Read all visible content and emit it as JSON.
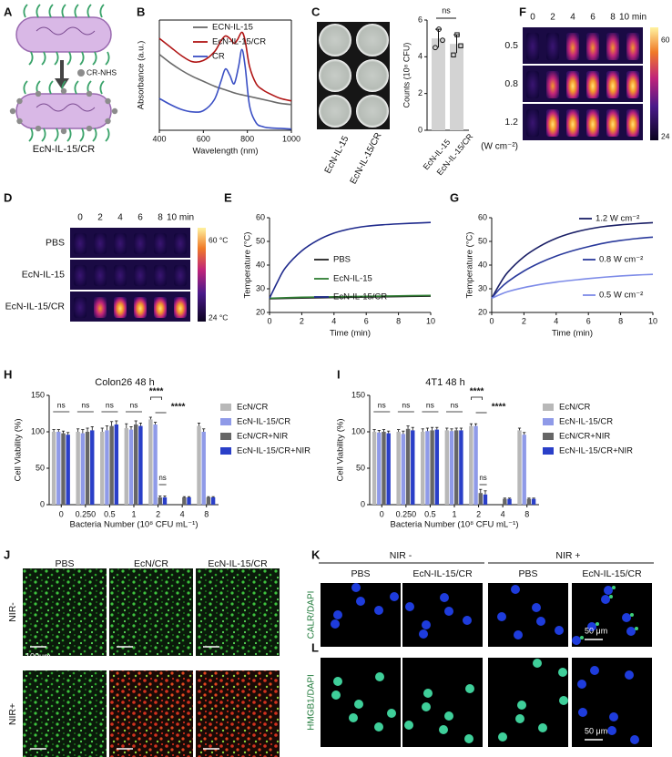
{
  "colors": {
    "ecn_il15": "#6a6a6a",
    "ecn_il15_cr": "#b01515",
    "cr": "#3a4fc4",
    "pbs_line": "#222222",
    "green_line": "#2e7d32",
    "navy": "#1f2a8c",
    "bar_gray": "#b8b8b8",
    "bar_lavender": "#8f9ae8",
    "bar_dark": "#666666",
    "bar_blue": "#2a3fc8"
  },
  "panels": {
    "A": {
      "letter": "A",
      "reagent": "CR-NHS",
      "product": "EcN-IL-15/CR"
    },
    "B": {
      "letter": "B"
    },
    "C": {
      "letter": "C",
      "plate_labels": [
        "EcN-IL-15",
        "EcN-IL-15/CR"
      ],
      "sig": "ns"
    },
    "D": {
      "letter": "D",
      "times": [
        "0",
        "2",
        "4",
        "6",
        "8",
        "10 min"
      ],
      "rows": [
        "PBS",
        "EcN-IL-15",
        "EcN-IL-15/CR"
      ],
      "cbar_max": "60 °C",
      "cbar_min": "24 °C"
    },
    "E": {
      "letter": "E"
    },
    "F": {
      "letter": "F",
      "times": [
        "0",
        "2",
        "4",
        "6",
        "8",
        "10 min"
      ],
      "rows": [
        "0.5",
        "0.8",
        "1.2"
      ],
      "unit": "(W cm⁻²)",
      "cbar_max": "60 °C",
      "cbar_min": "24 °C"
    },
    "G": {
      "letter": "G"
    },
    "H": {
      "letter": "H",
      "title": "Colon26 48 h"
    },
    "I": {
      "letter": "I",
      "title": "4T1 48 h"
    },
    "J": {
      "letter": "J",
      "cols": [
        "PBS",
        "EcN/CR",
        "EcN-IL-15/CR"
      ],
      "rows": [
        "NIR-",
        "NIR+"
      ],
      "scale": "100μm"
    },
    "K": {
      "letter": "K",
      "groups": [
        "NIR -",
        "NIR +"
      ],
      "cols": [
        "PBS",
        "EcN-IL-15/CR",
        "PBS",
        "EcN-IL-15/CR"
      ],
      "stain": "CALR/DAPI",
      "scale": "50 μm"
    },
    "L": {
      "letter": "L",
      "stain": "HMGB1/DAPI",
      "scale": "50 μm"
    }
  },
  "chart_data": [
    {
      "id": "B",
      "type": "line",
      "xlabel": "Wavelength (nm)",
      "ylabel": "Absorbance (a.u.)",
      "xlim": [
        400,
        1000
      ],
      "xticks": [
        "400",
        "600",
        "800",
        "1000"
      ],
      "legend": "top-right",
      "grid": false,
      "series": [
        {
          "name": "ECN-IL-15",
          "color": "#6a6a6a",
          "x": [
            400,
            450,
            500,
            550,
            600,
            650,
            700,
            750,
            800,
            850,
            900,
            950,
            1000
          ],
          "y": [
            0.62,
            0.55,
            0.49,
            0.44,
            0.4,
            0.36,
            0.33,
            0.3,
            0.28,
            0.26,
            0.24,
            0.22,
            0.21
          ]
        },
        {
          "name": "EcN-IL-15/CR",
          "color": "#b01515",
          "x": [
            400,
            450,
            500,
            550,
            600,
            650,
            680,
            700,
            720,
            740,
            755,
            775,
            790,
            810,
            840,
            870,
            900,
            950,
            1000
          ],
          "y": [
            0.75,
            0.68,
            0.61,
            0.56,
            0.57,
            0.64,
            0.73,
            0.77,
            0.75,
            0.71,
            0.74,
            0.8,
            0.73,
            0.52,
            0.38,
            0.33,
            0.3,
            0.26,
            0.24
          ]
        },
        {
          "name": "CR",
          "color": "#3a4fc4",
          "x": [
            400,
            450,
            500,
            550,
            600,
            650,
            680,
            700,
            720,
            740,
            760,
            775,
            790,
            810,
            840,
            870,
            900,
            950,
            1000
          ],
          "y": [
            0.26,
            0.21,
            0.17,
            0.15,
            0.16,
            0.25,
            0.4,
            0.5,
            0.45,
            0.38,
            0.52,
            0.66,
            0.52,
            0.2,
            0.06,
            0.03,
            0.02,
            0.015,
            0.01
          ]
        }
      ]
    },
    {
      "id": "C",
      "type": "bar",
      "ylabel": "Counts (10⁸ CFU)",
      "ylim": [
        0,
        6
      ],
      "yticks": [
        "0",
        "2",
        "4",
        "6"
      ],
      "categories": [
        "EcN-IL-15",
        "EcN-IL-15/CR"
      ],
      "values": [
        5.0,
        4.7
      ],
      "errors": [
        0.5,
        0.5
      ],
      "points": [
        [
          4.5,
          5.5,
          4.9
        ],
        [
          4.1,
          5.2,
          4.6
        ]
      ],
      "sig": "ns"
    },
    {
      "id": "E",
      "type": "line",
      "xlabel": "Time (min)",
      "ylabel": "Temperature (°C)",
      "xlim": [
        0,
        10
      ],
      "ylim": [
        20,
        60
      ],
      "xticks": [
        "0",
        "2",
        "4",
        "6",
        "8",
        "10"
      ],
      "yticks": [
        "20",
        "30",
        "40",
        "50",
        "60"
      ],
      "legend": "center-right",
      "series": [
        {
          "name": "PBS",
          "color": "#222222",
          "x": [
            0,
            2,
            4,
            6,
            8,
            10
          ],
          "y": [
            25.8,
            26.1,
            26.3,
            26.5,
            26.7,
            26.9
          ]
        },
        {
          "name": "EcN-IL-15",
          "color": "#2e7d32",
          "x": [
            0,
            2,
            4,
            6,
            8,
            10
          ],
          "y": [
            26.0,
            26.4,
            26.6,
            26.8,
            27.0,
            27.2
          ]
        },
        {
          "name": "EcN-IL-15/CR",
          "color": "#1f2a8c",
          "x": [
            0,
            0.5,
            1,
            2,
            3,
            4,
            5,
            6,
            7,
            8,
            9,
            10
          ],
          "y": [
            26,
            33,
            39,
            46,
            50.5,
            53.5,
            55.3,
            56.4,
            57.0,
            57.4,
            57.7,
            58.0
          ]
        }
      ]
    },
    {
      "id": "G",
      "type": "line",
      "xlabel": "Time (min)",
      "ylabel": "Temperature (°C)",
      "xlim": [
        0,
        10
      ],
      "ylim": [
        20,
        60
      ],
      "xticks": [
        "0",
        "2",
        "4",
        "6",
        "8",
        "10"
      ],
      "yticks": [
        "20",
        "30",
        "40",
        "50",
        "60"
      ],
      "series": [
        {
          "name": "1.2 W cm⁻²",
          "color": "#1a1f66",
          "x": [
            0,
            0.5,
            1,
            2,
            3,
            4,
            5,
            6,
            7,
            8,
            9,
            10
          ],
          "y": [
            26,
            32,
            37,
            43.5,
            48,
            51.3,
            53.6,
            55.2,
            56.3,
            57.0,
            57.5,
            57.9
          ]
        },
        {
          "name": "0.8 W cm⁻²",
          "color": "#2a3a9c",
          "x": [
            0,
            0.5,
            1,
            2,
            3,
            4,
            5,
            6,
            7,
            8,
            9,
            10
          ],
          "y": [
            26,
            30,
            33,
            37.5,
            41,
            43.8,
            46,
            47.8,
            49.3,
            50.4,
            51.2,
            51.8
          ]
        },
        {
          "name": "0.5 W cm⁻²",
          "color": "#7d8be8",
          "x": [
            0,
            0.5,
            1,
            2,
            3,
            4,
            5,
            6,
            7,
            8,
            9,
            10
          ],
          "y": [
            26,
            27.5,
            28.8,
            30.5,
            31.8,
            32.8,
            33.6,
            34.3,
            34.9,
            35.4,
            35.8,
            36.1
          ]
        }
      ]
    },
    {
      "id": "H",
      "type": "bar",
      "title": "Colon26 48 h",
      "ylabel": "Cell Viability (%)",
      "xlabel": "Bacteria Number  (10⁸ CFU mL⁻¹)",
      "ylim": [
        0,
        150
      ],
      "yticks": [
        "0",
        "50",
        "100",
        "150"
      ],
      "categories": [
        "0",
        "0.250",
        "0.5",
        "1",
        "2",
        "4",
        "8"
      ],
      "legend": "right",
      "series": [
        {
          "name": "EcN/CR",
          "color": "#b8b8b8",
          "values": [
            100,
            100,
            100,
            105,
            117,
            0,
            108
          ],
          "errors": [
            3,
            4,
            5,
            6,
            3,
            0,
            4
          ]
        },
        {
          "name": "EcN-IL-15/CR",
          "color": "#8f9ae8",
          "values": [
            100,
            98,
            102,
            103,
            110,
            0,
            100
          ],
          "errors": [
            3,
            5,
            6,
            4,
            3,
            0,
            4
          ]
        },
        {
          "name": "EcN/CR+NIR",
          "color": "#666666",
          "values": [
            98,
            100,
            108,
            110,
            10,
            10,
            10
          ],
          "errors": [
            3,
            5,
            6,
            5,
            2,
            1,
            1
          ]
        },
        {
          "name": "EcN-IL-15/CR+NIR",
          "color": "#2a3fc8",
          "values": [
            96,
            102,
            110,
            108,
            10,
            10,
            10
          ],
          "errors": [
            3,
            5,
            5,
            4,
            2,
            1,
            1
          ]
        }
      ],
      "annotations": [
        {
          "label": "ns",
          "cat": 0
        },
        {
          "label": "ns",
          "cat": 1
        },
        {
          "label": "ns",
          "cat": 2
        },
        {
          "label": "ns",
          "cat": 3
        },
        {
          "label": "****",
          "cat": 4,
          "level": 2
        },
        {
          "label": "****",
          "cat": 4,
          "level": 1
        },
        {
          "label": "ns",
          "cat": 4,
          "level": 0
        }
      ]
    },
    {
      "id": "I",
      "type": "bar",
      "title": "4T1 48 h",
      "ylabel": "Cell Viability (%)",
      "xlabel": "Bacteria Number  (10⁸ CFU mL⁻¹)",
      "ylim": [
        0,
        150
      ],
      "yticks": [
        "0",
        "50",
        "100",
        "150"
      ],
      "categories": [
        "0",
        "0.250",
        "0.5",
        "1",
        "2",
        "4",
        "8"
      ],
      "legend": "right",
      "series": [
        {
          "name": "EcN/CR",
          "color": "#b8b8b8",
          "values": [
            100,
            100,
            100,
            102,
            108,
            0,
            102
          ],
          "errors": [
            3,
            3,
            4,
            3,
            3,
            0,
            3
          ]
        },
        {
          "name": "EcN-IL-15/CR",
          "color": "#8f9ae8",
          "values": [
            99,
            97,
            101,
            101,
            108,
            0,
            96
          ],
          "errors": [
            3,
            4,
            4,
            3,
            3,
            0,
            3
          ]
        },
        {
          "name": "EcN/CR+NIR",
          "color": "#666666",
          "values": [
            100,
            104,
            102,
            102,
            16,
            8,
            8
          ],
          "errors": [
            3,
            4,
            4,
            3,
            5,
            1,
            1
          ]
        },
        {
          "name": "EcN-IL-15/CR+NIR",
          "color": "#2a3fc8",
          "values": [
            98,
            102,
            103,
            102,
            14,
            8,
            8
          ],
          "errors": [
            3,
            4,
            3,
            3,
            5,
            1,
            1
          ]
        }
      ],
      "annotations": [
        {
          "label": "ns",
          "cat": 0
        },
        {
          "label": "ns",
          "cat": 1
        },
        {
          "label": "ns",
          "cat": 2
        },
        {
          "label": "ns",
          "cat": 3
        },
        {
          "label": "****",
          "cat": 4,
          "level": 2
        },
        {
          "label": "****",
          "cat": 4,
          "level": 1
        },
        {
          "label": "ns",
          "cat": 4,
          "level": 0
        }
      ]
    }
  ]
}
